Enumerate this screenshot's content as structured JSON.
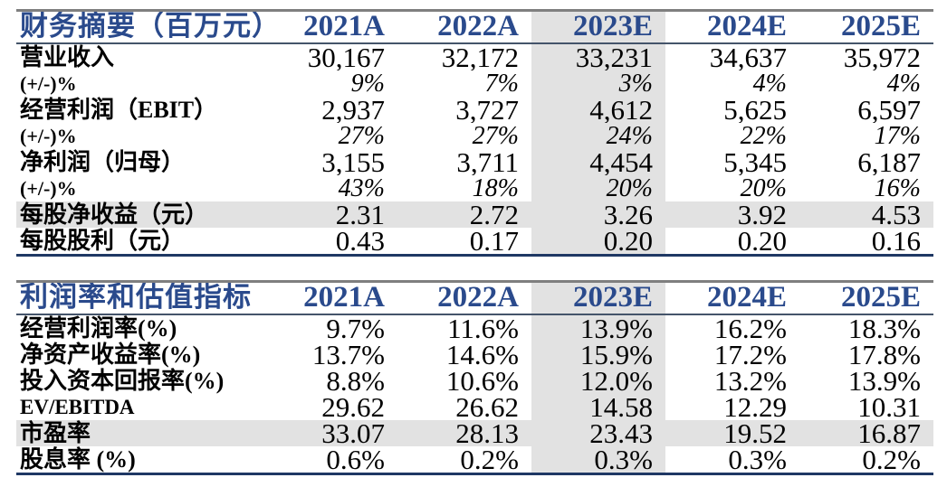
{
  "colors": {
    "header_blue": "#2a4a8c",
    "bottom_border_navy": "#1f3864",
    "top_border_gray": "#7f7f7f",
    "header_underline": "#44546a",
    "highlight_gray": "#e2e2e2"
  },
  "tables": [
    {
      "title": "财务摘要（百万元）",
      "years": [
        "2021A",
        "2022A",
        "2023E",
        "2024E",
        "2025E"
      ],
      "highlight_column": "2023E",
      "rows": [
        {
          "label": "营业收入",
          "values": [
            "30,167",
            "32,172",
            "33,231",
            "34,637",
            "35,972"
          ]
        },
        {
          "label": "(+/-)%",
          "values": [
            "9%",
            "7%",
            "3%",
            "4%",
            "4%"
          ]
        },
        {
          "label": "经营利润（EBIT）",
          "values": [
            "2,937",
            "3,727",
            "4,612",
            "5,625",
            "6,597"
          ]
        },
        {
          "label": "(+/-)%",
          "values": [
            "27%",
            "27%",
            "24%",
            "22%",
            "17%"
          ]
        },
        {
          "label": "净利润（归母）",
          "values": [
            "3,155",
            "3,711",
            "4,454",
            "5,345",
            "6,187"
          ]
        },
        {
          "label": "(+/-)%",
          "values": [
            "43%",
            "18%",
            "20%",
            "20%",
            "16%"
          ]
        },
        {
          "label": "每股净收益（元）",
          "values": [
            "2.31",
            "2.72",
            "3.26",
            "3.92",
            "4.53"
          ]
        },
        {
          "label": "每股股利（元）",
          "values": [
            "0.43",
            "0.17",
            "0.20",
            "0.20",
            "0.16"
          ]
        }
      ]
    },
    {
      "title": "利润率和估值指标",
      "years": [
        "2021A",
        "2022A",
        "2023E",
        "2024E",
        "2025E"
      ],
      "highlight_column": "2023E",
      "rows": [
        {
          "label": "经营利润率(%)",
          "values": [
            "9.7%",
            "11.6%",
            "13.9%",
            "16.2%",
            "18.3%"
          ]
        },
        {
          "label": "净资产收益率(%)",
          "values": [
            "13.7%",
            "14.6%",
            "15.9%",
            "17.2%",
            "17.8%"
          ]
        },
        {
          "label": "投入资本回报率(%)",
          "values": [
            "8.8%",
            "10.6%",
            "12.0%",
            "13.2%",
            "13.9%"
          ]
        },
        {
          "label": "EV/EBITDA",
          "values": [
            "29.62",
            "26.62",
            "14.58",
            "12.29",
            "10.31"
          ]
        },
        {
          "label": "市盈率",
          "values": [
            "33.07",
            "28.13",
            "23.43",
            "19.52",
            "16.87"
          ]
        },
        {
          "label": "股息率 (%)",
          "values": [
            "0.6%",
            "0.2%",
            "0.3%",
            "0.3%",
            "0.2%"
          ]
        }
      ]
    }
  ]
}
